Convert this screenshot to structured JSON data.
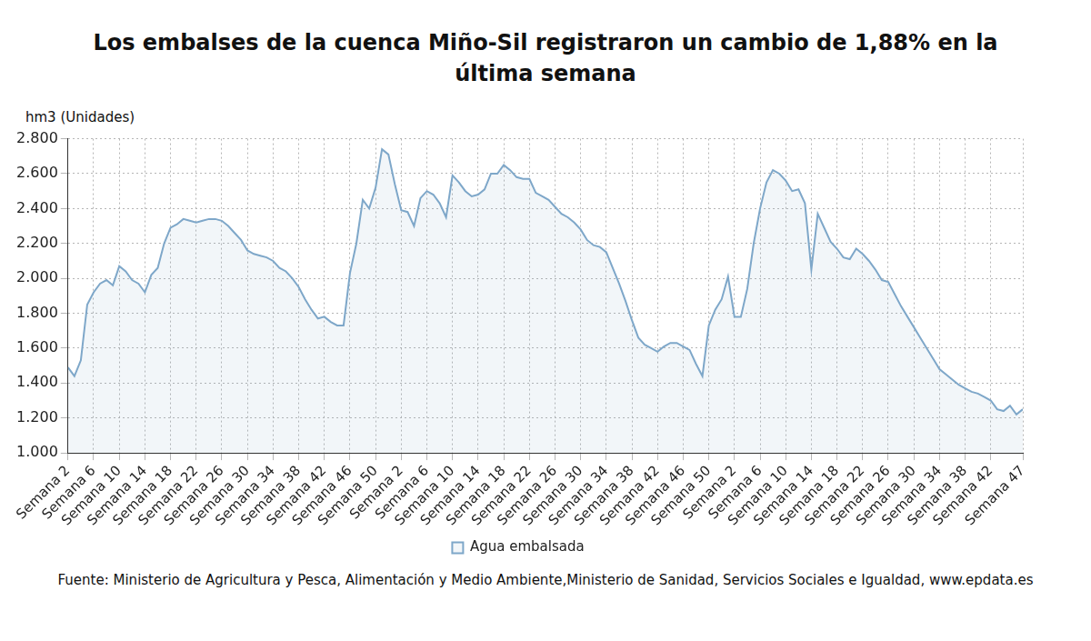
{
  "chart_data": {
    "type": "area",
    "title": "Los embalses de la cuenca Miño-Sil registraron un cambio de 1,88% en la última semana",
    "ylabel": "hm3 (Unidades)",
    "source": "Fuente: Ministerio de Agricultura y Pesca, Alimentación y Medio Ambiente,Ministerio de Sanidad, Servicios Sociales e Igualdad, www.epdata.es",
    "categories": [
      "Semana 2",
      null,
      null,
      null,
      "Semana 6",
      null,
      null,
      null,
      "Semana 10",
      null,
      null,
      null,
      "Semana 14",
      null,
      null,
      null,
      "Semana 18",
      null,
      null,
      null,
      "Semana 22",
      null,
      null,
      null,
      "Semana 26",
      null,
      null,
      null,
      "Semana 30",
      null,
      null,
      null,
      "Semana 34",
      null,
      null,
      null,
      "Semana 38",
      null,
      null,
      null,
      "Semana 42",
      null,
      null,
      null,
      "Semana 46",
      null,
      null,
      null,
      "Semana 50",
      null,
      null,
      null,
      "Semana 2",
      null,
      null,
      null,
      "Semana 6",
      null,
      null,
      null,
      "Semana 10",
      null,
      null,
      null,
      "Semana 14",
      null,
      null,
      null,
      "Semana 18",
      null,
      null,
      null,
      "Semana 22",
      null,
      null,
      null,
      "Semana 26",
      null,
      null,
      null,
      "Semana 30",
      null,
      null,
      null,
      "Semana 34",
      null,
      null,
      null,
      "Semana 38",
      null,
      null,
      null,
      "Semana 42",
      null,
      null,
      null,
      "Semana 46",
      null,
      null,
      null,
      "Semana 50",
      null,
      null,
      null,
      "Semana 2",
      null,
      null,
      null,
      "Semana 6",
      null,
      null,
      null,
      "Semana 10",
      null,
      null,
      null,
      "Semana 14",
      null,
      null,
      null,
      "Semana 18",
      null,
      null,
      null,
      "Semana 22",
      null,
      null,
      null,
      "Semana 26",
      null,
      null,
      null,
      "Semana 30",
      null,
      null,
      null,
      "Semana 34",
      null,
      null,
      null,
      "Semana 38",
      null,
      null,
      null,
      "Semana 42",
      null,
      null,
      null,
      null,
      "Semana 47"
    ],
    "series": [
      {
        "name": "Agua embalsada",
        "color": "#7ea7c9",
        "values": [
          1490,
          1440,
          1530,
          1850,
          1920,
          1970,
          1990,
          1960,
          2070,
          2040,
          1990,
          1970,
          1920,
          2020,
          2060,
          2200,
          2290,
          2310,
          2340,
          2330,
          2320,
          2330,
          2340,
          2340,
          2330,
          2300,
          2260,
          2220,
          2160,
          2140,
          2130,
          2120,
          2100,
          2060,
          2040,
          2000,
          1950,
          1880,
          1820,
          1770,
          1780,
          1750,
          1730,
          1730,
          2030,
          2200,
          2450,
          2400,
          2520,
          2740,
          2710,
          2540,
          2390,
          2380,
          2300,
          2460,
          2500,
          2480,
          2430,
          2350,
          2590,
          2550,
          2500,
          2470,
          2480,
          2510,
          2600,
          2600,
          2650,
          2620,
          2580,
          2570,
          2570,
          2490,
          2470,
          2450,
          2410,
          2370,
          2350,
          2320,
          2280,
          2220,
          2190,
          2180,
          2150,
          2060,
          1970,
          1870,
          1760,
          1660,
          1620,
          1600,
          1580,
          1610,
          1630,
          1630,
          1610,
          1590,
          1510,
          1440,
          1730,
          1820,
          1880,
          2010,
          1780,
          1780,
          1940,
          2200,
          2400,
          2550,
          2620,
          2600,
          2560,
          2500,
          2510,
          2430,
          2050,
          2370,
          2290,
          2210,
          2170,
          2120,
          2110,
          2170,
          2140,
          2100,
          2050,
          1990,
          1980,
          1910,
          1840,
          1780,
          1720,
          1660,
          1600,
          1540,
          1480,
          1450,
          1420,
          1390,
          1370,
          1350,
          1340,
          1320,
          1300,
          1250,
          1240,
          1270,
          1220,
          1250
        ]
      }
    ],
    "ylim": [
      1000,
      2800
    ],
    "yticks": [
      {
        "value": 1000,
        "label": "1.000"
      },
      {
        "value": 1200,
        "label": "1.200"
      },
      {
        "value": 1400,
        "label": "1.400"
      },
      {
        "value": 1600,
        "label": "1.600"
      },
      {
        "value": 1800,
        "label": "1.800"
      },
      {
        "value": 2000,
        "label": "2.000"
      },
      {
        "value": 2200,
        "label": "2.200"
      },
      {
        "value": 2400,
        "label": "2.400"
      },
      {
        "value": 2600,
        "label": "2.600"
      },
      {
        "value": 2800,
        "label": "2.800"
      }
    ],
    "grid": true,
    "legend": "bottom"
  }
}
